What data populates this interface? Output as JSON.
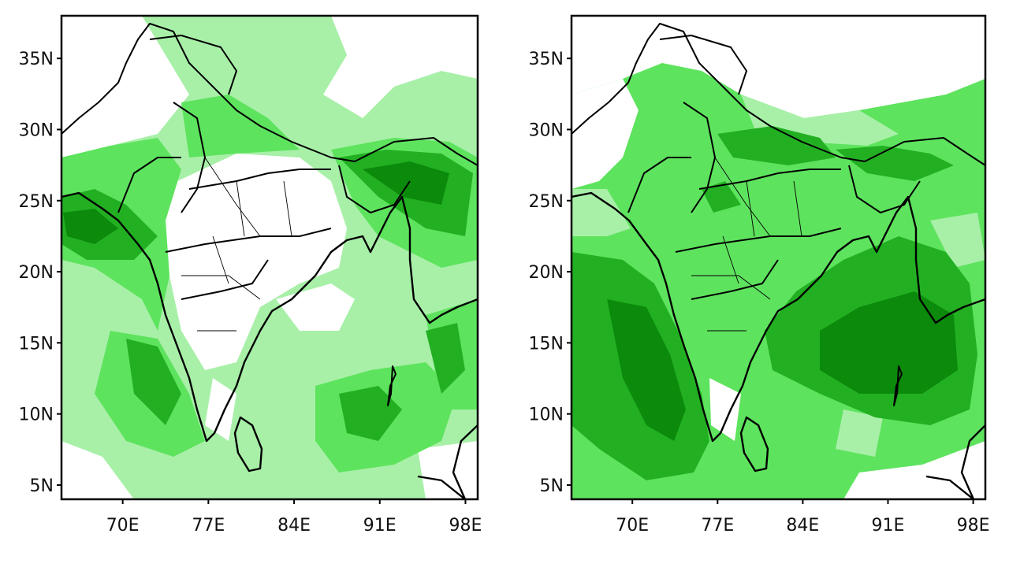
{
  "maps": [
    {
      "id": "left",
      "lat_ticks": [
        "35N",
        "30N",
        "25N",
        "20N",
        "15N",
        "10N",
        "5N"
      ],
      "lat_values": [
        35,
        30,
        25,
        20,
        15,
        10,
        5
      ],
      "lon_ticks": [
        "70E",
        "77E",
        "84E",
        "91E",
        "98E"
      ],
      "lon_values": [
        70,
        77,
        84,
        91,
        98
      ],
      "extent": {
        "lon": [
          65,
          99
        ],
        "lat": [
          4,
          38
        ]
      },
      "colors": {
        "light": "#a8f0a8",
        "mid": "#5ee35e",
        "dark": "#22b022",
        "darkest": "#0c8a0c"
      }
    },
    {
      "id": "right",
      "lat_ticks": [
        "35N",
        "30N",
        "25N",
        "20N",
        "15N",
        "10N",
        "5N"
      ],
      "lat_values": [
        35,
        30,
        25,
        20,
        15,
        10,
        5
      ],
      "lon_ticks": [
        "70E",
        "77E",
        "84E",
        "91E",
        "98E"
      ],
      "lon_values": [
        70,
        77,
        84,
        91,
        98
      ],
      "extent": {
        "lon": [
          65,
          99
        ],
        "lat": [
          4,
          38
        ]
      },
      "colors": {
        "light": "#a8f0a8",
        "mid": "#5ee35e",
        "dark": "#22b022",
        "darkest": "#0c8a0c"
      }
    }
  ]
}
